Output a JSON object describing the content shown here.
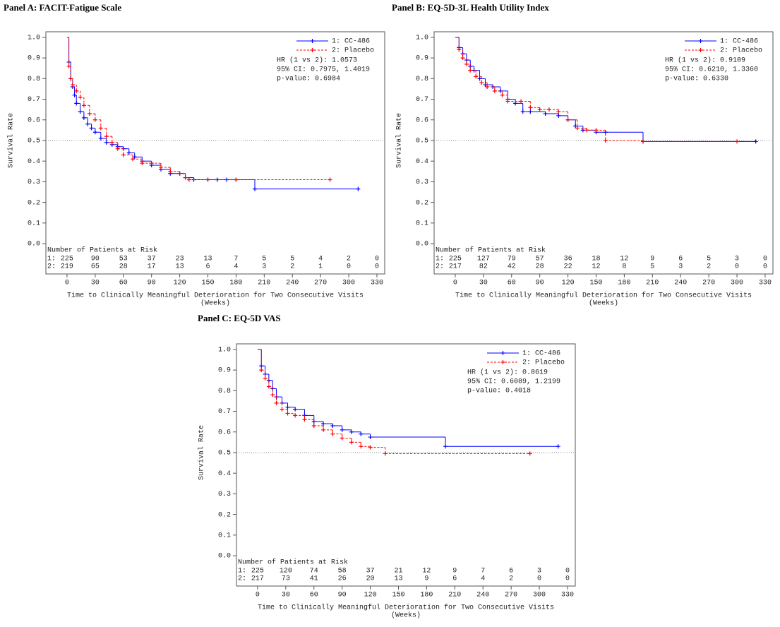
{
  "chart_data": [
    {
      "type": "km",
      "title": "Panel A: FACIT-Fatigue Scale",
      "ylabel": "Survival Rate",
      "xlabel": "Time to Clinically Meaningful Deterioration for Two Consecutive Visits",
      "xlabel_unit": "(Weeks)",
      "xlim": [
        -22.5,
        338.3
      ],
      "ylim": [
        -0.147,
        1.027
      ],
      "xticks": [
        0,
        30,
        60,
        90,
        120,
        150,
        180,
        210,
        240,
        270,
        300,
        330
      ],
      "yticks": [
        {
          "value": 0,
          "label": "0.0"
        },
        0.1,
        0.2,
        0.3,
        0.4,
        0.5,
        0.6,
        0.7,
        0.8,
        0.9,
        {
          "value": 1,
          "label": "1.0"
        }
      ],
      "reference_line": 0.5,
      "series": [
        {
          "name": "1: CC-486",
          "color": "#0000ff",
          "line_style": "solid",
          "x": [
            0,
            2,
            4,
            6,
            8,
            10,
            14,
            18,
            22,
            26,
            30,
            36,
            42,
            48,
            54,
            60,
            66,
            72,
            80,
            90,
            100,
            110,
            120,
            126,
            135,
            150,
            160,
            170,
            180,
            200,
            310
          ],
          "values": [
            1.0,
            0.88,
            0.8,
            0.76,
            0.72,
            0.68,
            0.64,
            0.61,
            0.58,
            0.56,
            0.54,
            0.51,
            0.49,
            0.48,
            0.47,
            0.46,
            0.44,
            0.42,
            0.4,
            0.38,
            0.36,
            0.34,
            0.34,
            0.32,
            0.31,
            0.31,
            0.31,
            0.31,
            0.31,
            0.265,
            0.265
          ]
        },
        {
          "name": "2: Placebo",
          "color": "#ff0000",
          "line_style": "dashed",
          "x": [
            0,
            2,
            4,
            6,
            10,
            14,
            18,
            24,
            30,
            36,
            42,
            48,
            54,
            60,
            70,
            80,
            90,
            100,
            110,
            120,
            126,
            130,
            150,
            180,
            280
          ],
          "values": [
            1.0,
            0.86,
            0.8,
            0.77,
            0.74,
            0.71,
            0.67,
            0.63,
            0.6,
            0.56,
            0.52,
            0.49,
            0.46,
            0.43,
            0.41,
            0.39,
            0.39,
            0.37,
            0.35,
            0.34,
            0.32,
            0.31,
            0.31,
            0.31,
            0.31
          ]
        }
      ],
      "annotations": [
        "HR (1 vs 2): 1.0573",
        "95% CI: 0.7975, 1.4019",
        "p-value: 0.6984"
      ],
      "at_risk": {
        "title": "Number of Patients at Risk",
        "rows": [
          {
            "label": "1:",
            "values": [
              225,
              90,
              53,
              37,
              23,
              13,
              7,
              5,
              5,
              4,
              2,
              0
            ]
          },
          {
            "label": "2:",
            "values": [
              219,
              65,
              28,
              17,
              13,
              6,
              4,
              3,
              2,
              1,
              0,
              0
            ]
          }
        ]
      }
    },
    {
      "type": "km",
      "title": "Panel B: EQ-5D-3L Health Utility Index",
      "ylabel": "Survival Rate",
      "xlabel": "Time to Clinically Meaningful Deterioration for Two Consecutive Visits",
      "xlabel_unit": "(Weeks)",
      "xlim": [
        -22.5,
        338.3
      ],
      "ylim": [
        -0.147,
        1.027
      ],
      "xticks": [
        0,
        30,
        60,
        90,
        120,
        150,
        180,
        210,
        240,
        270,
        300,
        330
      ],
      "yticks": [
        {
          "value": 0,
          "label": "0.0"
        },
        0.1,
        0.2,
        0.3,
        0.4,
        0.5,
        0.6,
        0.7,
        0.8,
        0.9,
        {
          "value": 1,
          "label": "1.0"
        }
      ],
      "reference_line": 0.5,
      "series": [
        {
          "name": "1: CC-486",
          "color": "#0000ff",
          "line_style": "solid",
          "x": [
            0,
            4,
            8,
            12,
            16,
            20,
            26,
            32,
            40,
            48,
            56,
            64,
            72,
            80,
            96,
            110,
            120,
            128,
            136,
            150,
            160,
            200,
            320
          ],
          "values": [
            1.0,
            0.95,
            0.92,
            0.89,
            0.86,
            0.84,
            0.8,
            0.77,
            0.76,
            0.74,
            0.7,
            0.68,
            0.64,
            0.64,
            0.63,
            0.62,
            0.6,
            0.57,
            0.55,
            0.54,
            0.54,
            0.495,
            0.495
          ]
        },
        {
          "name": "2: Placebo",
          "color": "#ff0000",
          "line_style": "dashed",
          "x": [
            0,
            4,
            8,
            12,
            16,
            22,
            28,
            34,
            42,
            50,
            56,
            70,
            80,
            90,
            100,
            110,
            120,
            130,
            140,
            150,
            160,
            200,
            300
          ],
          "values": [
            1.0,
            0.94,
            0.9,
            0.87,
            0.84,
            0.81,
            0.78,
            0.76,
            0.74,
            0.72,
            0.69,
            0.69,
            0.66,
            0.65,
            0.65,
            0.64,
            0.6,
            0.56,
            0.55,
            0.55,
            0.5,
            0.495,
            0.495
          ]
        }
      ],
      "annotations": [
        "HR (1 vs 2): 0.9109",
        "95% CI: 0.6210, 1.3360",
        "p-value: 0.6330"
      ],
      "at_risk": {
        "title": "Number of Patients at Risk",
        "rows": [
          {
            "label": "1:",
            "values": [
              225,
              127,
              79,
              57,
              36,
              18,
              12,
              9,
              6,
              5,
              3,
              0
            ]
          },
          {
            "label": "2:",
            "values": [
              217,
              82,
              42,
              28,
              22,
              12,
              8,
              5,
              3,
              2,
              0,
              0
            ]
          }
        ]
      }
    },
    {
      "type": "km",
      "title": "Panel C: EQ-5D VAS",
      "ylabel": "Survival Rate",
      "xlabel": "Time to Clinically Meaningful Deterioration for Two Consecutive Visits",
      "xlabel_unit": "(Weeks)",
      "xlim": [
        -22.5,
        338.3
      ],
      "ylim": [
        -0.147,
        1.027
      ],
      "xticks": [
        0,
        30,
        60,
        90,
        120,
        150,
        180,
        210,
        240,
        270,
        300,
        330
      ],
      "yticks": [
        {
          "value": 0,
          "label": "0.0"
        },
        0.1,
        0.2,
        0.3,
        0.4,
        0.5,
        0.6,
        0.7,
        0.8,
        0.9,
        {
          "value": 1,
          "label": "1.0"
        }
      ],
      "reference_line": 0.5,
      "series": [
        {
          "name": "1: CC-486",
          "color": "#0000ff",
          "line_style": "solid",
          "x": [
            0,
            4,
            8,
            12,
            16,
            20,
            26,
            32,
            40,
            50,
            60,
            70,
            80,
            90,
            100,
            110,
            120,
            200,
            320
          ],
          "values": [
            1.0,
            0.92,
            0.88,
            0.85,
            0.81,
            0.77,
            0.74,
            0.72,
            0.71,
            0.68,
            0.65,
            0.64,
            0.63,
            0.61,
            0.6,
            0.59,
            0.575,
            0.53,
            0.53
          ]
        },
        {
          "name": "2: Placebo",
          "color": "#ff0000",
          "line_style": "dashed",
          "x": [
            0,
            4,
            8,
            12,
            16,
            20,
            26,
            32,
            40,
            50,
            60,
            70,
            80,
            90,
            100,
            110,
            120,
            136,
            290
          ],
          "values": [
            1.0,
            0.9,
            0.86,
            0.82,
            0.78,
            0.74,
            0.71,
            0.69,
            0.68,
            0.66,
            0.63,
            0.61,
            0.59,
            0.57,
            0.55,
            0.53,
            0.525,
            0.495,
            0.495
          ]
        }
      ],
      "annotations": [
        "HR (1 vs 2): 0.8619",
        "95% CI: 0.6089, 1.2199",
        "p-value: 0.4018"
      ],
      "at_risk": {
        "title": "Number of Patients at Risk",
        "rows": [
          {
            "label": "1:",
            "values": [
              225,
              120,
              74,
              58,
              37,
              21,
              12,
              9,
              7,
              6,
              3,
              0
            ]
          },
          {
            "label": "2:",
            "values": [
              217,
              73,
              41,
              26,
              20,
              13,
              9,
              6,
              4,
              2,
              0,
              0
            ]
          }
        ]
      }
    }
  ]
}
